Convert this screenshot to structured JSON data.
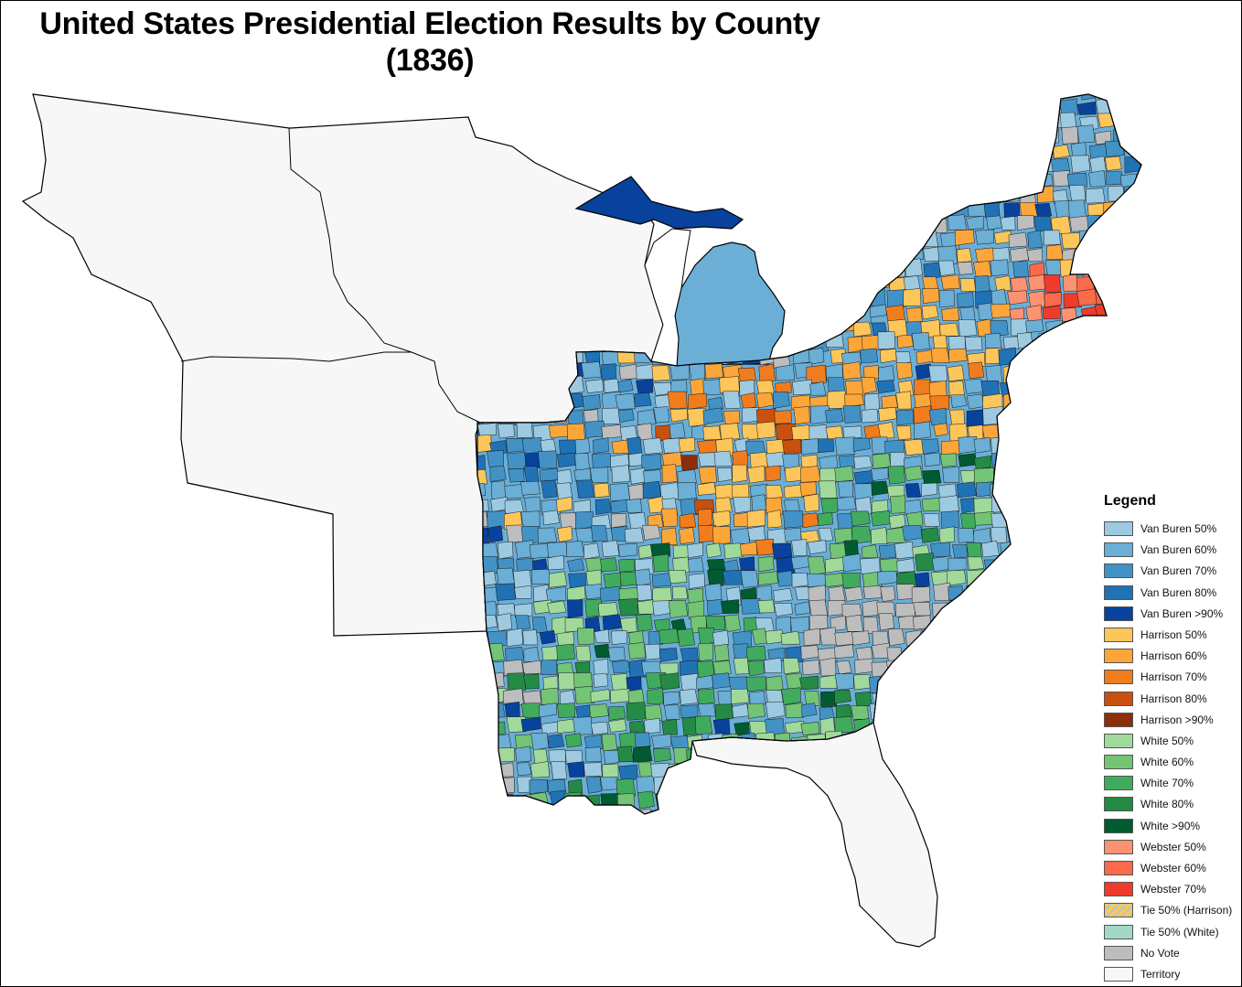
{
  "title": {
    "line1": "United States Presidential Election Results by County",
    "line2": "(1836)"
  },
  "legend": {
    "title": "Legend",
    "items": [
      {
        "label": "Van Buren 50%",
        "color": "#9ecae1"
      },
      {
        "label": "Van Buren 60%",
        "color": "#6baed6"
      },
      {
        "label": "Van Buren 70%",
        "color": "#4292c6"
      },
      {
        "label": "Van Buren 80%",
        "color": "#2171b5"
      },
      {
        "label": "Van Buren >90%",
        "color": "#08429c"
      },
      {
        "label": "Harrison 50%",
        "color": "#fdc65a"
      },
      {
        "label": "Harrison 60%",
        "color": "#fca63a"
      },
      {
        "label": "Harrison 70%",
        "color": "#f07c1d"
      },
      {
        "label": "Harrison 80%",
        "color": "#c9500e"
      },
      {
        "label": "Harrison >90%",
        "color": "#8c2d0b"
      },
      {
        "label": "White 50%",
        "color": "#a1d99b"
      },
      {
        "label": "White 60%",
        "color": "#74c476"
      },
      {
        "label": "White 70%",
        "color": "#41ab5d"
      },
      {
        "label": "White 80%",
        "color": "#238b45"
      },
      {
        "label": "White >90%",
        "color": "#005a32"
      },
      {
        "label": "Webster 50%",
        "color": "#fc9272"
      },
      {
        "label": "Webster 60%",
        "color": "#fb6a4a"
      },
      {
        "label": "Webster 70%",
        "color": "#ef3b2c"
      },
      {
        "label": "Tie 50% (Harrison)",
        "color": "#fdc65a"
      },
      {
        "label": "Tie 50% (White)",
        "color": "#a1d9c6"
      },
      {
        "label": "No Vote",
        "color": "#bdbdbd"
      },
      {
        "label": "Territory",
        "color": "#f7f7f7"
      }
    ]
  },
  "colors": {
    "territory": "#f7f7f7",
    "no_vote": "#bdbdbd",
    "border": "#000000",
    "background": "#ffffff"
  }
}
